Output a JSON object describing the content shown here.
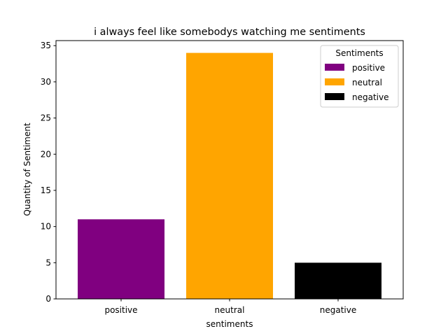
{
  "chart_data": {
    "type": "bar",
    "title": "i always feel like somebodys watching me sentiments",
    "xlabel": "sentiments",
    "ylabel": "Quantity of Sentiment",
    "categories": [
      "positive",
      "neutral",
      "negative"
    ],
    "values": [
      11,
      34,
      5
    ],
    "colors": [
      "#800080",
      "#ffa500",
      "#000000"
    ],
    "ylim": [
      0,
      35.7
    ],
    "yticks": [
      0,
      5,
      10,
      15,
      20,
      25,
      30,
      35
    ],
    "grid": false,
    "legend": {
      "title": "Sentiments",
      "placement": "top-right",
      "entries": [
        "positive",
        "neutral",
        "negative"
      ]
    }
  }
}
